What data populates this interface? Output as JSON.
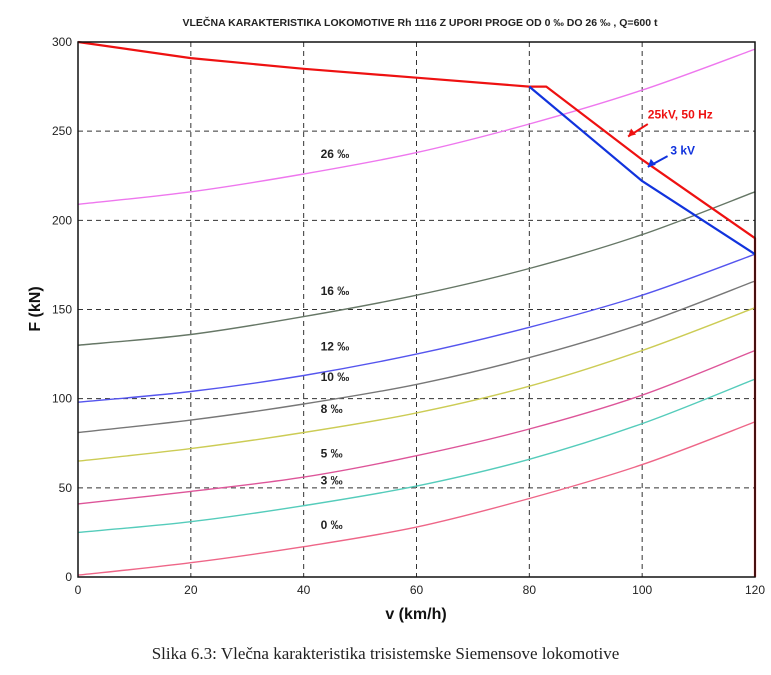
{
  "chart_data": {
    "type": "line",
    "title": "VLEČNA KARAKTERISTIKA LOKOMOTIVE Rh 1116 Z UPORI PROGE OD 0 ‰ DO 26 ‰ , Q=600 t",
    "xlabel": "v (km/h)",
    "ylabel": "F (kN)",
    "xlim": [
      0,
      120
    ],
    "ylim": [
      0,
      300
    ],
    "xticks": [
      "0",
      "20",
      "40",
      "60",
      "80",
      "100",
      "120"
    ],
    "yticks": [
      "0",
      "50",
      "100",
      "150",
      "200",
      "250",
      "300"
    ],
    "grid": true,
    "traction_series": [
      {
        "name": "25 kV, 50 Hz",
        "color": "#ee1111",
        "points": [
          [
            0,
            300
          ],
          [
            20,
            291
          ],
          [
            40,
            285
          ],
          [
            60,
            280
          ],
          [
            80,
            275
          ],
          [
            83,
            275
          ],
          [
            100,
            234
          ],
          [
            120,
            190
          ],
          [
            120,
            0
          ]
        ]
      },
      {
        "name": "3 kV",
        "color": "#1133dd",
        "points": [
          [
            80,
            275
          ],
          [
            100,
            222
          ],
          [
            120,
            181
          ]
        ]
      }
    ],
    "resistance_series": [
      {
        "name": "26 ‰",
        "color": "#ee77ee",
        "x": [
          0,
          20,
          40,
          60,
          80,
          100,
          120
        ],
        "y": [
          209,
          216,
          226,
          238,
          254,
          273,
          296
        ]
      },
      {
        "name": "16 ‰",
        "color": "#667766",
        "x": [
          0,
          20,
          40,
          60,
          80,
          100,
          120
        ],
        "y": [
          130,
          136,
          146,
          158,
          173,
          192,
          216
        ]
      },
      {
        "name": "12 ‰",
        "color": "#5555ee",
        "x": [
          0,
          20,
          40,
          60,
          80,
          100,
          120
        ],
        "y": [
          98,
          104,
          113,
          125,
          140,
          158,
          181
        ]
      },
      {
        "name": "10 ‰",
        "color": "#777777",
        "x": [
          0,
          20,
          40,
          60,
          80,
          100,
          120
        ],
        "y": [
          81,
          88,
          97,
          108,
          123,
          142,
          166
        ]
      },
      {
        "name": "8 ‰",
        "color": "#cccc55",
        "x": [
          0,
          20,
          40,
          60,
          80,
          100,
          120
        ],
        "y": [
          65,
          72,
          81,
          92,
          107,
          127,
          151
        ]
      },
      {
        "name": "5 ‰",
        "color": "#dd5599",
        "x": [
          0,
          20,
          40,
          60,
          80,
          100,
          120
        ],
        "y": [
          41,
          48,
          56,
          68,
          83,
          102,
          127
        ]
      },
      {
        "name": "3 ‰",
        "color": "#55ccbb",
        "x": [
          0,
          20,
          40,
          60,
          80,
          100,
          120
        ],
        "y": [
          25,
          31,
          40,
          51,
          66,
          86,
          111
        ]
      },
      {
        "name": "0 ‰",
        "color": "#ee6688",
        "x": [
          0,
          20,
          40,
          60,
          80,
          100,
          120
        ],
        "y": [
          1,
          8,
          17,
          28,
          44,
          63,
          87
        ]
      }
    ],
    "curve_labels": [
      {
        "text": "26 ‰",
        "x": 43,
        "y": 235,
        "color": "#222222"
      },
      {
        "text": "16 ‰",
        "x": 43,
        "y": 158,
        "color": "#222222"
      },
      {
        "text": "12 ‰",
        "x": 43,
        "y": 127,
        "color": "#222222"
      },
      {
        "text": "10 ‰",
        "x": 43,
        "y": 110,
        "color": "#222222"
      },
      {
        "text": "8 ‰",
        "x": 43,
        "y": 92,
        "color": "#222222"
      },
      {
        "text": "5 ‰",
        "x": 43,
        "y": 67,
        "color": "#222222"
      },
      {
        "text": "3 ‰",
        "x": 43,
        "y": 52,
        "color": "#222222"
      },
      {
        "text": "0 ‰",
        "x": 43,
        "y": 27,
        "color": "#222222"
      },
      {
        "text": "25kV, 50 Hz",
        "x": 101,
        "y": 257,
        "color": "#ee1111"
      },
      {
        "text": "3 kV",
        "x": 105,
        "y": 237,
        "color": "#1133dd"
      }
    ]
  },
  "caption": "Slika 6.3: Vlečna karakteristika trisistemske Siemensove lokomotive"
}
